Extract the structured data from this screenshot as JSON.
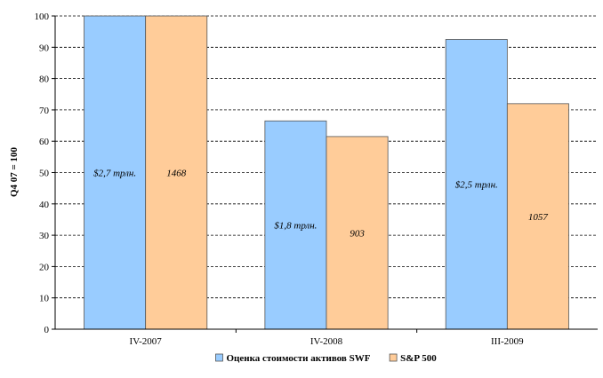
{
  "chart_data": {
    "type": "bar",
    "title": "",
    "xlabel": "",
    "ylabel": "Q4 07 = 100",
    "ylim": [
      0,
      100
    ],
    "ytick_step": 10,
    "grid": true,
    "legend_position": "bottom",
    "categories": [
      "IV-2007",
      "IV-2008",
      "III-2009"
    ],
    "series": [
      {
        "name": "Оценка стоимости активов SWF",
        "color": "#99ccff",
        "values": [
          100,
          66.5,
          92.5
        ],
        "labels": [
          "$2,7 трлн.",
          "$1,8 трлн.",
          "$2,5 трлн."
        ]
      },
      {
        "name": "S&P 500",
        "color": "#ffcc99",
        "values": [
          100,
          61.5,
          72
        ],
        "labels": [
          "1468",
          "903",
          "1057"
        ]
      }
    ]
  }
}
